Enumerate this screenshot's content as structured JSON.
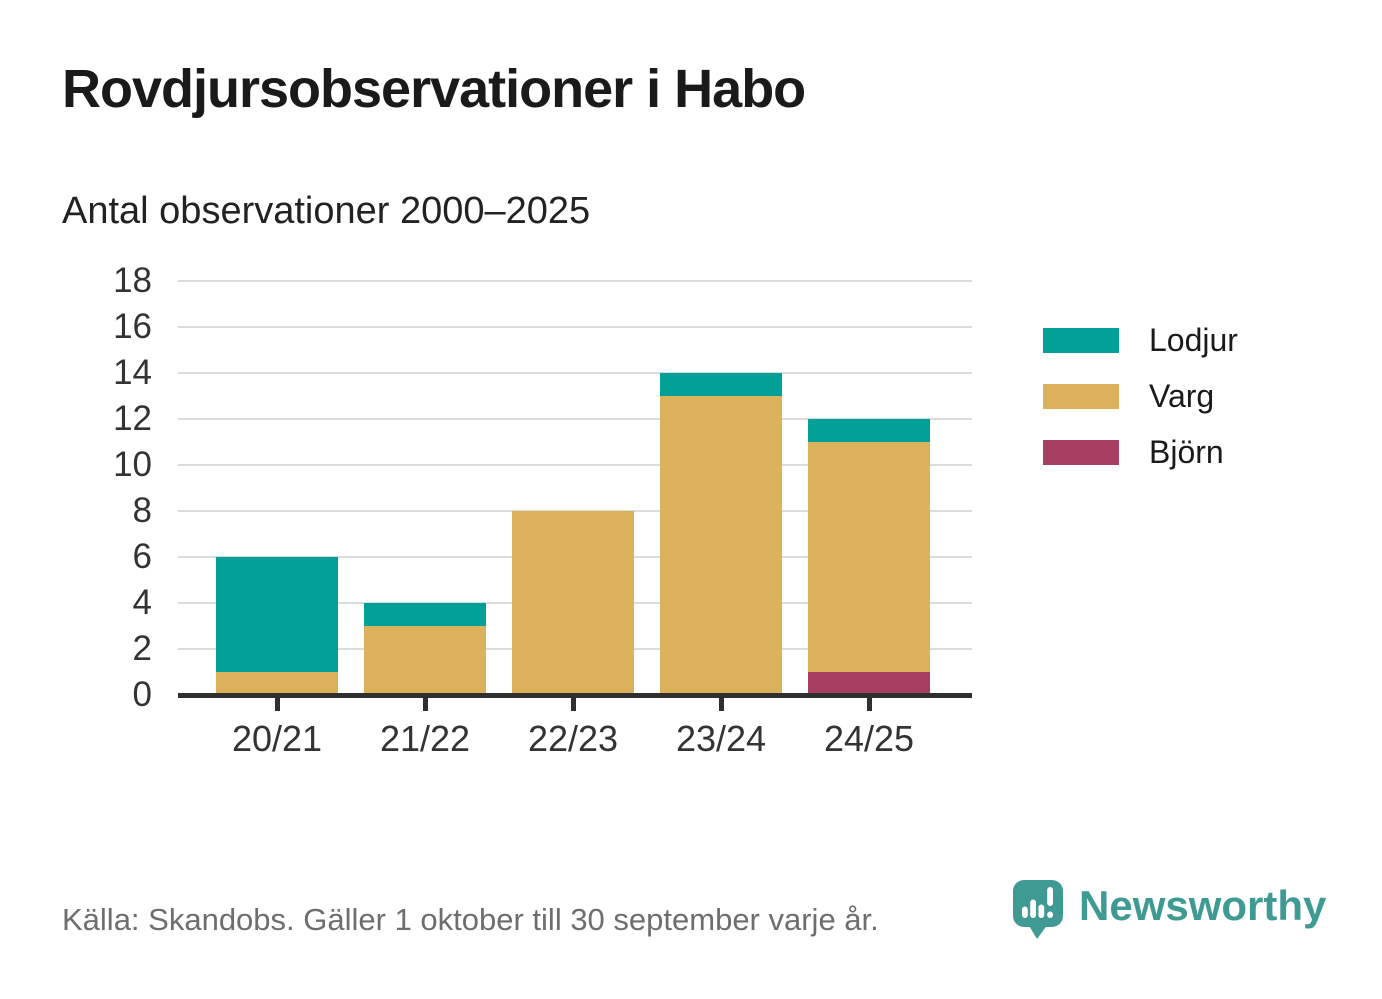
{
  "header": {
    "title": "Rovdjursobservationer i Habo",
    "subtitle": "Antal observationer 2000–2025"
  },
  "chart_data": {
    "type": "bar",
    "stacked": true,
    "title": "Rovdjursobservationer i Habo",
    "subtitle": "Antal observationer 2000–2025",
    "categories": [
      "20/21",
      "21/22",
      "22/23",
      "23/24",
      "24/25"
    ],
    "series": [
      {
        "name": "Lodjur",
        "color": "#00a096",
        "values": [
          5,
          1,
          0,
          1,
          1
        ]
      },
      {
        "name": "Varg",
        "color": "#dcb15c",
        "values": [
          1,
          3,
          8,
          13,
          10
        ]
      },
      {
        "name": "Björn",
        "color": "#a63f62",
        "values": [
          0,
          0,
          0,
          0,
          1
        ]
      }
    ],
    "stack_order_bottom_to_top": [
      "Björn",
      "Varg",
      "Lodjur"
    ],
    "totals": [
      6,
      4,
      8,
      14,
      12
    ],
    "xlabel": "",
    "ylabel": "",
    "ylim": [
      0,
      18
    ],
    "yticks": [
      0,
      2,
      4,
      6,
      8,
      10,
      12,
      14,
      16,
      18
    ],
    "grid": "horizontal",
    "gridline_color": "#dbdbdb",
    "axis_color": "#2f2f2f",
    "tick_label_color": "#333333",
    "legend_position": "right",
    "legend_order": [
      "Lodjur",
      "Varg",
      "Björn"
    ]
  },
  "footer": {
    "source": "Källa: Skandobs. Gäller 1 oktober till 30 september varje år.",
    "brand": "Newsworthy",
    "brand_color": "#3f9a94",
    "logo_icon": "newsworthy-speech-bubble-chart-icon"
  }
}
